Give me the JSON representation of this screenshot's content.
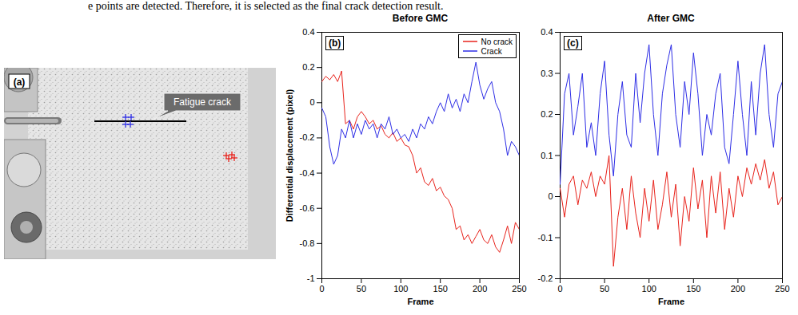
{
  "text_above": "e points are detected. Therefore, it is selected as the final crack detection result.",
  "panel_a": {
    "label": "(a)",
    "annotation": "Fatigue crack"
  },
  "chart_data": [
    {
      "type": "line",
      "panel_label": "(b)",
      "title": "Before GMC",
      "x_label": "Frame",
      "y_label": "Differential displacement (pixel)",
      "x": [
        0,
        5,
        10,
        15,
        20,
        25,
        30,
        35,
        40,
        45,
        50,
        55,
        60,
        65,
        70,
        75,
        80,
        85,
        90,
        95,
        100,
        105,
        110,
        115,
        120,
        125,
        130,
        135,
        140,
        145,
        150,
        155,
        160,
        165,
        170,
        175,
        180,
        185,
        190,
        195,
        200,
        205,
        210,
        215,
        220,
        225,
        230,
        235,
        240,
        245,
        250
      ],
      "xlim": [
        0,
        250
      ],
      "xticks": [
        0,
        50,
        100,
        150,
        200,
        250
      ],
      "ylim": [
        -1,
        0.4
      ],
      "yticks": [
        -1,
        -0.8,
        -0.6,
        -0.4,
        -0.2,
        0,
        0.2,
        0.4
      ],
      "legend": "top-right",
      "series": [
        {
          "name": "No crack",
          "color": "#e8231c",
          "values": [
            0.12,
            0.15,
            0.13,
            0.16,
            0.12,
            0.18,
            -0.12,
            -0.1,
            -0.15,
            -0.08,
            -0.05,
            -0.08,
            -0.12,
            -0.1,
            -0.15,
            -0.13,
            -0.18,
            -0.2,
            -0.17,
            -0.22,
            -0.2,
            -0.24,
            -0.25,
            -0.3,
            -0.4,
            -0.37,
            -0.45,
            -0.47,
            -0.43,
            -0.5,
            -0.48,
            -0.53,
            -0.55,
            -0.6,
            -0.72,
            -0.7,
            -0.78,
            -0.75,
            -0.8,
            -0.76,
            -0.72,
            -0.78,
            -0.8,
            -0.75,
            -0.82,
            -0.85,
            -0.78,
            -0.7,
            -0.8,
            -0.68,
            -0.72
          ]
        },
        {
          "name": "Crack",
          "color": "#2e2ee6",
          "values": [
            -0.03,
            -0.08,
            -0.25,
            -0.35,
            -0.3,
            -0.15,
            -0.2,
            -0.1,
            -0.2,
            -0.12,
            -0.18,
            -0.1,
            -0.15,
            -0.12,
            -0.2,
            -0.12,
            -0.15,
            -0.08,
            -0.18,
            -0.15,
            -0.2,
            -0.18,
            -0.22,
            -0.15,
            -0.2,
            -0.12,
            -0.15,
            -0.08,
            -0.12,
            -0.05,
            0.0,
            -0.05,
            0.05,
            -0.03,
            0.02,
            -0.05,
            0.05,
            0.0,
            0.12,
            0.23,
            0.1,
            0.02,
            0.08,
            0.12,
            0.0,
            -0.05,
            -0.15,
            -0.3,
            -0.22,
            -0.25,
            -0.3
          ]
        }
      ]
    },
    {
      "type": "line",
      "panel_label": "(c)",
      "title": "After GMC",
      "x_label": "Frame",
      "x": [
        0,
        5,
        10,
        15,
        20,
        25,
        30,
        35,
        40,
        45,
        50,
        55,
        60,
        65,
        70,
        75,
        80,
        85,
        90,
        95,
        100,
        105,
        110,
        115,
        120,
        125,
        130,
        135,
        140,
        145,
        150,
        155,
        160,
        165,
        170,
        175,
        180,
        185,
        190,
        195,
        200,
        205,
        210,
        215,
        220,
        225,
        230,
        235,
        240,
        245,
        250
      ],
      "xlim": [
        0,
        250
      ],
      "xticks": [
        0,
        50,
        100,
        150,
        200,
        250
      ],
      "ylim": [
        -0.2,
        0.4
      ],
      "yticks": [
        -0.2,
        -0.1,
        0,
        0.1,
        0.2,
        0.3,
        0.4
      ],
      "series": [
        {
          "color": "#e8231c",
          "values": [
            0.02,
            -0.05,
            0.03,
            0.05,
            -0.02,
            0.04,
            0.02,
            0.06,
            0.0,
            0.05,
            0.03,
            0.1,
            -0.17,
            -0.05,
            0.02,
            -0.08,
            0.05,
            -0.04,
            -0.1,
            0.02,
            -0.06,
            0.04,
            -0.08,
            -0.02,
            0.06,
            -0.05,
            0.03,
            -0.12,
            0.0,
            -0.06,
            0.07,
            -0.03,
            0.04,
            -0.1,
            0.05,
            -0.04,
            0.06,
            -0.08,
            0.02,
            -0.05,
            0.05,
            0.0,
            0.07,
            0.03,
            0.08,
            0.04,
            0.09,
            0.02,
            0.06,
            -0.02,
            0.0
          ]
        },
        {
          "color": "#2e2ee6",
          "values": [
            0.03,
            0.25,
            0.3,
            0.15,
            0.22,
            0.3,
            0.12,
            0.18,
            0.1,
            0.25,
            0.33,
            0.15,
            0.05,
            0.2,
            0.28,
            0.15,
            0.12,
            0.3,
            0.18,
            0.3,
            0.37,
            0.2,
            0.1,
            0.25,
            0.32,
            0.37,
            0.2,
            0.12,
            0.28,
            0.2,
            0.35,
            0.25,
            0.1,
            0.2,
            0.15,
            0.25,
            0.3,
            0.12,
            0.08,
            0.2,
            0.33,
            0.2,
            0.1,
            0.28,
            0.15,
            0.3,
            0.37,
            0.2,
            0.12,
            0.25,
            0.28
          ]
        }
      ]
    }
  ]
}
